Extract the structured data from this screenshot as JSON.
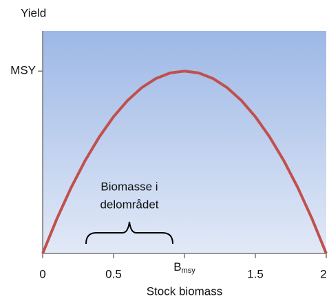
{
  "chart_data": {
    "type": "line",
    "y_label": "Yield",
    "x_label": "Stock biomass",
    "annotation": [
      "Biomasse i",
      "delområdet"
    ],
    "x": [
      0,
      0.1,
      0.2,
      0.3,
      0.4,
      0.5,
      0.6,
      0.7,
      0.8,
      0.9,
      1,
      1.1,
      1.2,
      1.3,
      1.4,
      1.5,
      1.6,
      1.7,
      1.8,
      1.9,
      2
    ],
    "series": [
      {
        "color": "#c0504d",
        "values": [
          0,
          0.19,
          0.36,
          0.51,
          0.64,
          0.75,
          0.84,
          0.91,
          0.96,
          0.99,
          1,
          0.99,
          0.96,
          0.91,
          0.84,
          0.75,
          0.64,
          0.51,
          0.36,
          0.19,
          0
        ]
      }
    ],
    "xlim": [
      0,
      2
    ],
    "xticks": [
      0,
      0.5,
      {
        "value": 1,
        "label": "Bmsy"
      },
      1.5,
      2
    ],
    "ylim": [
      0,
      1.22
    ],
    "yticks": [
      {
        "value": 1,
        "label": "MSY"
      }
    ]
  }
}
